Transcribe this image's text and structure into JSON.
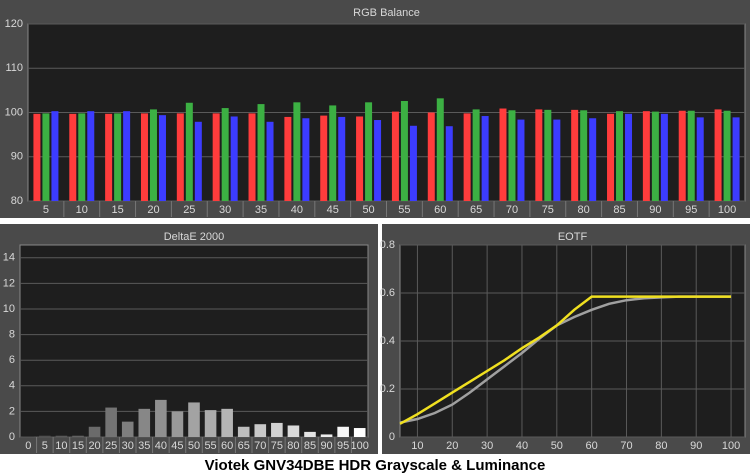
{
  "chart_data": [
    {
      "type": "bar",
      "title": "RGB Balance",
      "categories": [
        "5",
        "10",
        "15",
        "20",
        "25",
        "30",
        "35",
        "40",
        "45",
        "50",
        "55",
        "60",
        "65",
        "70",
        "75",
        "80",
        "85",
        "90",
        "95",
        "100"
      ],
      "series": [
        {
          "color": "#ff3c3c",
          "values": [
            99.7,
            99.7,
            99.7,
            99.8,
            99.8,
            99.8,
            99.8,
            99.0,
            99.3,
            99.1,
            100.2,
            100.0,
            99.8,
            100.9,
            100.7,
            100.6,
            99.7,
            100.3,
            100.4,
            100.7
          ]
        },
        {
          "color": "#3cb043",
          "values": [
            99.8,
            99.8,
            99.8,
            100.7,
            102.2,
            101.0,
            101.9,
            102.3,
            101.6,
            102.3,
            102.6,
            103.2,
            100.7,
            100.5,
            100.6,
            100.5,
            100.3,
            100.2,
            100.4,
            100.4
          ]
        },
        {
          "color": "#3c3cff",
          "values": [
            100.3,
            100.3,
            100.3,
            99.4,
            97.9,
            99.1,
            97.9,
            98.7,
            99.0,
            98.3,
            97.0,
            96.9,
            99.2,
            98.4,
            98.4,
            98.7,
            99.7,
            99.7,
            98.9,
            98.9
          ]
        }
      ],
      "ylim": [
        80,
        120
      ],
      "yticks": [
        80,
        90,
        100,
        110,
        120
      ],
      "grid": true
    },
    {
      "type": "bar",
      "title": "DeltaE 2000",
      "categories": [
        "0",
        "5",
        "10",
        "15",
        "20",
        "25",
        "30",
        "35",
        "40",
        "45",
        "50",
        "55",
        "60",
        "65",
        "70",
        "75",
        "80",
        "85",
        "90",
        "95",
        "100"
      ],
      "values": [
        0.05,
        0.1,
        0.1,
        0.1,
        0.8,
        2.3,
        1.2,
        2.2,
        2.9,
        2.0,
        2.7,
        2.1,
        2.2,
        0.8,
        1.0,
        1.1,
        0.9,
        0.4,
        0.2,
        0.8,
        0.7
      ],
      "ylim": [
        0,
        15
      ],
      "yticks": [
        0,
        2,
        4,
        6,
        8,
        10,
        12,
        14
      ],
      "grid": true
    },
    {
      "type": "line",
      "title": "EOTF",
      "x": [
        5,
        10,
        15,
        20,
        25,
        30,
        35,
        40,
        45,
        50,
        55,
        60,
        65,
        70,
        75,
        80,
        85,
        90,
        95,
        100
      ],
      "series": [
        {
          "color": "#a0a0a0",
          "values": [
            0.06,
            0.075,
            0.1,
            0.135,
            0.185,
            0.24,
            0.295,
            0.35,
            0.41,
            0.465,
            0.5,
            0.53,
            0.555,
            0.57,
            0.578,
            0.582,
            0.585,
            0.585,
            0.585,
            0.585
          ]
        },
        {
          "color": "#f0e020",
          "values": [
            0.055,
            0.095,
            0.14,
            0.185,
            0.23,
            0.275,
            0.32,
            0.37,
            0.415,
            0.465,
            0.53,
            0.585,
            0.585,
            0.585,
            0.585,
            0.585,
            0.585,
            0.585,
            0.585,
            0.585
          ]
        }
      ],
      "xlim": [
        5,
        104
      ],
      "xticks": [
        10,
        20,
        30,
        40,
        50,
        60,
        70,
        80,
        90,
        100
      ],
      "ylim": [
        0,
        0.8
      ],
      "yticks": [
        0,
        0.2,
        0.4,
        0.6,
        0.8
      ],
      "grid": true
    }
  ],
  "caption": "Viotek GNV34DBE HDR Grayscale & Luminance"
}
